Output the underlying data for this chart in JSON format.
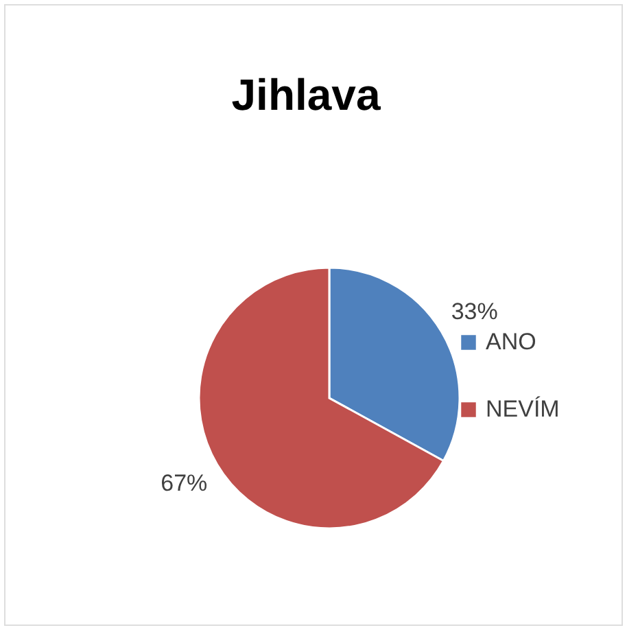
{
  "chart_data": {
    "type": "pie",
    "title": "Jihlava",
    "categories": [
      "ANO",
      "NEVÍM"
    ],
    "values": [
      33,
      67
    ],
    "colors": [
      "#4f81bd",
      "#c0504d"
    ],
    "value_labels": [
      "33%",
      "67%"
    ],
    "legend": "right"
  }
}
